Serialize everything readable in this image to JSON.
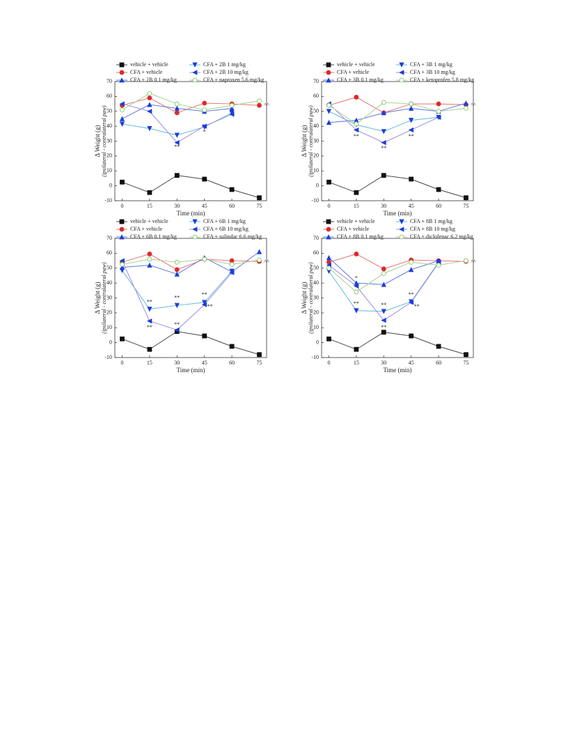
{
  "chart_data": [
    {
      "type": "line",
      "x_label": "Time (min)",
      "y_label": "Δ Weight (g)",
      "y_sublabel": "(ipsilateral - contralateral paw)",
      "x": [
        0,
        15,
        30,
        45,
        60,
        75
      ],
      "xlim": [
        -4,
        79
      ],
      "xticks": [
        0,
        15,
        30,
        45,
        60,
        75
      ],
      "ylim": [
        -10,
        70
      ],
      "yticks": [
        -10,
        0,
        10,
        20,
        30,
        40,
        50,
        60,
        70
      ],
      "series": [
        {
          "name": "vehicle + vehicle",
          "color": "#111111",
          "line_color": "#444444",
          "marker": "square",
          "values": [
            2.5,
            -4.5,
            7,
            4.5,
            -2.5,
            -8
          ]
        },
        {
          "name": "CFA + vehicle",
          "color": "#e02828",
          "line_color": "#e87070",
          "marker": "circle",
          "values": [
            54,
            59,
            49,
            55.5,
            55,
            54
          ]
        },
        {
          "name": "CFA + 2B 0.1 mg/kg",
          "color": "#1a3fd8",
          "line_color": "#5a78e0",
          "marker": "up",
          "values": [
            45,
            54.5,
            52,
            50,
            52,
            null
          ]
        },
        {
          "name": "CFA + 2B 1 mg/kg",
          "color": "#1a3fd8",
          "line_color": "#60b8e0",
          "marker": "down",
          "values": [
            41.5,
            38.5,
            34,
            39.5,
            49,
            null
          ]
        },
        {
          "name": "CFA + 2B 10 mg/kg",
          "color": "#1a3fd8",
          "line_color": "#a08ce0",
          "marker": "left",
          "values": [
            55,
            50,
            29,
            40,
            48,
            null
          ]
        },
        {
          "name": "CFA + naproxen 5.6 mg/kg",
          "color": "#7cbf5a",
          "line_color": "#a8d090",
          "marker": "open",
          "values": [
            51,
            62,
            55,
            51,
            54,
            57
          ]
        }
      ],
      "annotations": [
        {
          "text": "**",
          "x": 30,
          "y": 26
        },
        {
          "text": "*",
          "x": 45,
          "y": 36
        },
        {
          "text": "^^",
          "x": 79,
          "y": 54
        }
      ]
    },
    {
      "type": "line",
      "x_label": "Time (min)",
      "y_label": "Δ Weight (g)",
      "y_sublabel": "(ipsilateral - contralateral paw)",
      "x": [
        0,
        15,
        30,
        45,
        60,
        75
      ],
      "xlim": [
        -4,
        79
      ],
      "xticks": [
        0,
        15,
        30,
        45,
        60,
        75
      ],
      "ylim": [
        -10,
        70
      ],
      "yticks": [
        -10,
        0,
        10,
        20,
        30,
        40,
        50,
        60,
        70
      ],
      "series": [
        {
          "name": "vehicle + vehicle",
          "color": "#111111",
          "line_color": "#444444",
          "marker": "square",
          "values": [
            2.5,
            -4.5,
            7,
            4.5,
            -2.5,
            -8
          ]
        },
        {
          "name": "CFA + vehicle",
          "color": "#e02828",
          "line_color": "#e87070",
          "marker": "circle",
          "values": [
            54,
            59.5,
            49,
            55,
            55,
            54.5
          ]
        },
        {
          "name": "CFA + 3B 0.1 mg/kg",
          "color": "#1a3fd8",
          "line_color": "#5a78e0",
          "marker": "up",
          "values": [
            42.5,
            44,
            49,
            52,
            50,
            55.5
          ]
        },
        {
          "name": "CFA + 3B 1 mg/kg",
          "color": "#1a3fd8",
          "line_color": "#60b8e0",
          "marker": "down",
          "values": [
            50,
            41,
            36.5,
            44,
            46,
            null
          ]
        },
        {
          "name": "CFA + 3B 10 mg/kg",
          "color": "#1a3fd8",
          "line_color": "#a08ce0",
          "marker": "left",
          "values": [
            55,
            37.5,
            29,
            37.5,
            46,
            null
          ]
        },
        {
          "name": "CFA + ketoprofen 5.8 mg/kg",
          "color": "#7cbf5a",
          "line_color": "#a8d090",
          "marker": "open",
          "values": [
            54,
            41.5,
            56,
            55,
            50,
            52
          ]
        }
      ],
      "annotations": [
        {
          "text": "**",
          "x": 15,
          "y": 33
        },
        {
          "text": "**",
          "x": 30,
          "y": 25
        },
        {
          "text": "**",
          "x": 45,
          "y": 33
        },
        {
          "text": "^^",
          "x": 79,
          "y": 54
        }
      ]
    },
    {
      "type": "line",
      "x_label": "Time (min)",
      "y_label": "Δ Weight (g)",
      "y_sublabel": "(ipsilateral - contralateral paw)",
      "x": [
        0,
        15,
        30,
        45,
        60,
        75
      ],
      "xlim": [
        -4,
        79
      ],
      "xticks": [
        0,
        15,
        30,
        45,
        60,
        75
      ],
      "ylim": [
        -10,
        70
      ],
      "yticks": [
        -10,
        0,
        10,
        20,
        30,
        40,
        50,
        60,
        70
      ],
      "series": [
        {
          "name": "vehicle + vehicle",
          "color": "#111111",
          "line_color": "#444444",
          "marker": "square",
          "values": [
            2.5,
            -4.5,
            7.5,
            4.5,
            -2.5,
            -8
          ]
        },
        {
          "name": "CFA + vehicle",
          "color": "#e02828",
          "line_color": "#e87070",
          "marker": "circle",
          "values": [
            54,
            59.5,
            49,
            56,
            55,
            54.5
          ]
        },
        {
          "name": "CFA + 6B 0.1 mg/kg",
          "color": "#1a3fd8",
          "line_color": "#5a78e0",
          "marker": "up",
          "values": [
            50.5,
            52,
            46,
            57,
            47.5,
            61
          ]
        },
        {
          "name": "CFA + 6B 1 mg/kg",
          "color": "#1a3fd8",
          "line_color": "#60b8e0",
          "marker": "down",
          "values": [
            48.5,
            22.5,
            25,
            27,
            48,
            null
          ]
        },
        {
          "name": "CFA + 6B 10 mg/kg",
          "color": "#1a3fd8",
          "line_color": "#a08ce0",
          "marker": "left",
          "values": [
            55,
            14.5,
            8.5,
            25.5,
            47,
            null
          ]
        },
        {
          "name": "CFA + sulindac 6.6 mg/kg",
          "color": "#7cbf5a",
          "line_color": "#a8d090",
          "marker": "open",
          "values": [
            52.5,
            56,
            54,
            56,
            52.5,
            55.5
          ]
        }
      ],
      "annotations": [
        {
          "text": "**",
          "x": 15,
          "y": 27
        },
        {
          "text": "**",
          "x": 30,
          "y": 30
        },
        {
          "text": "**",
          "x": 45,
          "y": 32
        },
        {
          "text": "**",
          "x": 15,
          "y": 10
        },
        {
          "text": "**",
          "x": 30,
          "y": 12
        },
        {
          "text": "**",
          "x": 48,
          "y": 24
        },
        {
          "text": "^^",
          "x": 79,
          "y": 54
        }
      ]
    },
    {
      "type": "line",
      "x_label": "Time (min)",
      "y_label": "Δ Weight (g)",
      "y_sublabel": "(ipsilateral - contralateral paw)",
      "x": [
        0,
        15,
        30,
        45,
        60,
        75
      ],
      "xlim": [
        -4,
        79
      ],
      "xticks": [
        0,
        15,
        30,
        45,
        60,
        75
      ],
      "ylim": [
        -10,
        70
      ],
      "yticks": [
        -10,
        0,
        10,
        20,
        30,
        40,
        50,
        60,
        70
      ],
      "series": [
        {
          "name": "vehicle + vehicle",
          "color": "#111111",
          "line_color": "#444444",
          "marker": "square",
          "values": [
            2.5,
            -4.5,
            7,
            4.5,
            -2.5,
            -8
          ]
        },
        {
          "name": "CFA + vehicle",
          "color": "#e02828",
          "line_color": "#e87070",
          "marker": "circle",
          "values": [
            54,
            59.5,
            49.5,
            55.5,
            55,
            54.5
          ]
        },
        {
          "name": "CFA + 8B 0.1 mg/kg",
          "color": "#1a3fd8",
          "line_color": "#5a78e0",
          "marker": "up",
          "values": [
            57,
            40,
            39,
            49,
            55,
            null
          ]
        },
        {
          "name": "CFA + 8B 1 mg/kg",
          "color": "#1a3fd8",
          "line_color": "#60b8e0",
          "marker": "down",
          "values": [
            48,
            21.5,
            21,
            27.5,
            54,
            null
          ]
        },
        {
          "name": "CFA + 8B 10 mg/kg",
          "color": "#1a3fd8",
          "line_color": "#a08ce0",
          "marker": "left",
          "values": [
            52,
            38,
            15,
            27,
            53.5,
            null
          ]
        },
        {
          "name": "CFA + diclofenac 6.2 mg/kg",
          "color": "#7cbf5a",
          "line_color": "#a8d090",
          "marker": "open",
          "values": [
            50,
            34,
            46.5,
            54,
            52,
            55
          ]
        }
      ],
      "annotations": [
        {
          "text": "**",
          "x": 15,
          "y": 26
        },
        {
          "text": "*",
          "x": 15,
          "y": 43
        },
        {
          "text": "**",
          "x": 30,
          "y": 25
        },
        {
          "text": "**",
          "x": 30,
          "y": 10
        },
        {
          "text": "**",
          "x": 45,
          "y": 32
        },
        {
          "text": "**",
          "x": 48,
          "y": 24
        },
        {
          "text": "^^",
          "x": 79,
          "y": 54
        }
      ]
    }
  ]
}
